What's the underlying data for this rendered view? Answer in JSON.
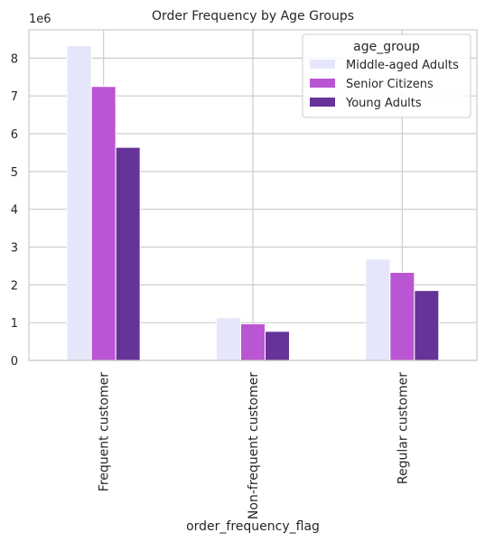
{
  "chart_data": {
    "type": "bar",
    "title": "Order Frequency by Age Groups",
    "xlabel": "order_frequency_flag",
    "ylabel": "",
    "y_offset_label": "1e6",
    "categories": [
      "Frequent customer",
      "Non-frequent customer",
      "Regular customer"
    ],
    "series": [
      {
        "name": "Middle-aged Adults",
        "color": "#e6e6fa",
        "values": [
          8330000,
          1130000,
          2680000
        ]
      },
      {
        "name": "Senior Citizens",
        "color": "#ba55d3",
        "values": [
          7250000,
          970000,
          2330000
        ]
      },
      {
        "name": "Young Adults",
        "color": "#663399",
        "values": [
          5640000,
          770000,
          1850000
        ]
      }
    ],
    "ylim": [
      0,
      8750000
    ],
    "yticks": [
      0,
      1000000,
      2000000,
      3000000,
      4000000,
      5000000,
      6000000,
      7000000,
      8000000
    ],
    "ytick_labels": [
      "0",
      "1",
      "2",
      "3",
      "4",
      "5",
      "6",
      "7",
      "8"
    ],
    "grid": true,
    "legend": {
      "title": "age_group",
      "placement": "top-right"
    }
  }
}
